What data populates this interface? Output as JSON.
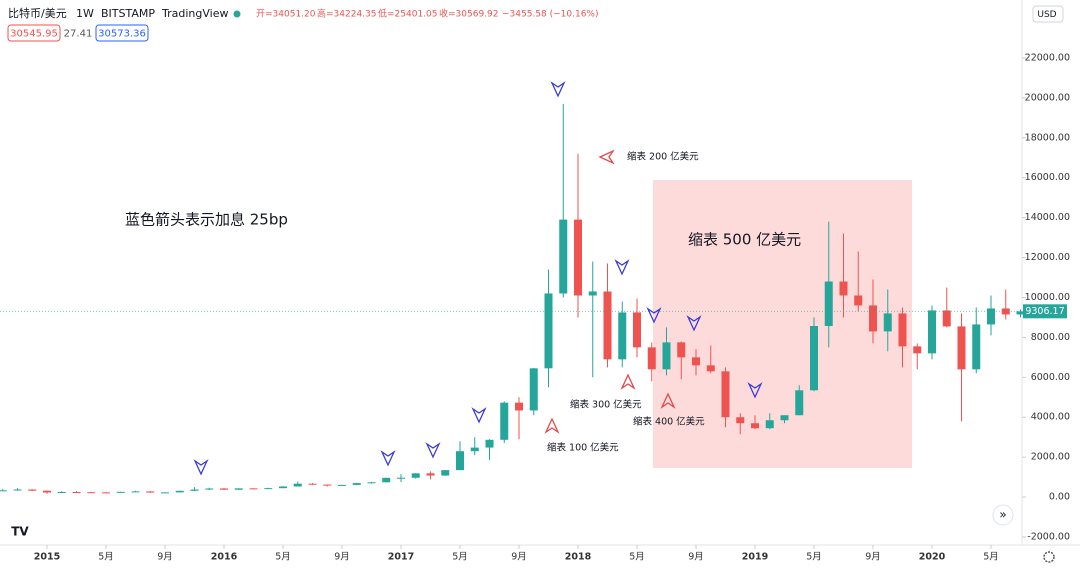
{
  "header": {
    "symbol": "比特币/美元",
    "interval": "1W",
    "exchange": "BITSTAMP",
    "source": "TradingView",
    "ohlc": [
      "开=34051.20",
      "高=34224.35",
      "低=25401.05",
      "收=30569.92"
    ],
    "change": "−3455.58 (−10.16%)",
    "bid": "30545.95",
    "spread": "27.41",
    "ask": "30573.36",
    "currency": "USD"
  },
  "chart_data": {
    "type": "candlestick",
    "annotations": [
      "蓝色箭头表示加息 25bp",
      "缩表 500 亿美元",
      "缩表 200 亿美元",
      "缩表 300 亿美元",
      "缩表 400 亿美元",
      "缩表 100 亿美元"
    ],
    "x": [
      "2014-10",
      "2014-11",
      "2014-12",
      "2015-01",
      "2015-02",
      "2015-03",
      "2015-04",
      "2015-05",
      "2015-06",
      "2015-07",
      "2015-08",
      "2015-09",
      "2015-10",
      "2015-11",
      "2015-12",
      "2016-01",
      "2016-02",
      "2016-03",
      "2016-04",
      "2016-05",
      "2016-06",
      "2016-07",
      "2016-08",
      "2016-09",
      "2016-10",
      "2016-11",
      "2016-12",
      "2017-01",
      "2017-02",
      "2017-03",
      "2017-04",
      "2017-05",
      "2017-06",
      "2017-07",
      "2017-08",
      "2017-09",
      "2017-10",
      "2017-11",
      "2017-12",
      "2018-01",
      "2018-02",
      "2018-03",
      "2018-04",
      "2018-05",
      "2018-06",
      "2018-07",
      "2018-08",
      "2018-09",
      "2018-10",
      "2018-11",
      "2018-12",
      "2019-01",
      "2019-02",
      "2019-03",
      "2019-04",
      "2019-05",
      "2019-06",
      "2019-07",
      "2019-08",
      "2019-09",
      "2019-10",
      "2019-11",
      "2019-12",
      "2020-01",
      "2020-02",
      "2020-03",
      "2020-04",
      "2020-05",
      "2020-06",
      "2020-07"
    ],
    "series": [
      {
        "name": "比特币/美元",
        "up_color": "#26a69a",
        "down_color": "#ef5350",
        "values": [
          [
            340,
            400,
            300,
            340
          ],
          [
            340,
            450,
            320,
            380
          ],
          [
            380,
            390,
            310,
            320
          ],
          [
            320,
            330,
            170,
            230
          ],
          [
            230,
            300,
            210,
            255
          ],
          [
            255,
            300,
            240,
            245
          ],
          [
            245,
            260,
            210,
            235
          ],
          [
            235,
            250,
            225,
            230
          ],
          [
            230,
            265,
            220,
            262
          ],
          [
            262,
            320,
            260,
            285
          ],
          [
            285,
            290,
            200,
            230
          ],
          [
            230,
            245,
            225,
            237
          ],
          [
            237,
            320,
            235,
            315
          ],
          [
            315,
            500,
            300,
            378
          ],
          [
            378,
            470,
            350,
            430
          ],
          [
            430,
            460,
            360,
            370
          ],
          [
            370,
            440,
            360,
            437
          ],
          [
            437,
            440,
            400,
            416
          ],
          [
            416,
            470,
            410,
            448
          ],
          [
            448,
            550,
            440,
            530
          ],
          [
            530,
            780,
            530,
            670
          ],
          [
            670,
            700,
            600,
            625
          ],
          [
            625,
            630,
            530,
            575
          ],
          [
            575,
            620,
            570,
            610
          ],
          [
            610,
            720,
            600,
            700
          ],
          [
            700,
            760,
            690,
            740
          ],
          [
            740,
            970,
            740,
            965
          ],
          [
            965,
            1150,
            750,
            970
          ],
          [
            970,
            1200,
            920,
            1190
          ],
          [
            1190,
            1290,
            890,
            1080
          ],
          [
            1080,
            1350,
            1060,
            1350
          ],
          [
            1350,
            2800,
            1350,
            2300
          ],
          [
            2300,
            3000,
            2100,
            2480
          ],
          [
            2480,
            2900,
            1850,
            2870
          ],
          [
            2870,
            4800,
            2700,
            4730
          ],
          [
            4730,
            5000,
            2900,
            4340
          ],
          [
            4340,
            6470,
            4100,
            6450
          ],
          [
            6450,
            11400,
            5500,
            10200
          ],
          [
            10200,
            19700,
            10000,
            13900
          ],
          [
            13900,
            17200,
            9000,
            10100
          ],
          [
            10100,
            11800,
            6000,
            10300
          ],
          [
            10300,
            11700,
            6500,
            6900
          ],
          [
            6900,
            9800,
            6500,
            9250
          ],
          [
            9250,
            9950,
            7000,
            7500
          ],
          [
            7500,
            7750,
            5800,
            6400
          ],
          [
            6400,
            8500,
            6100,
            7750
          ],
          [
            7750,
            7800,
            5900,
            7000
          ],
          [
            7000,
            7400,
            6100,
            6600
          ],
          [
            6600,
            7600,
            6200,
            6300
          ],
          [
            6300,
            6500,
            3500,
            4000
          ],
          [
            4000,
            4200,
            3150,
            3700
          ],
          [
            3700,
            4100,
            3400,
            3450
          ],
          [
            3450,
            4200,
            3400,
            3850
          ],
          [
            3850,
            4100,
            3700,
            4100
          ],
          [
            4100,
            5600,
            4100,
            5350
          ],
          [
            5350,
            9000,
            5300,
            8570
          ],
          [
            8570,
            13800,
            7500,
            10800
          ],
          [
            10800,
            13200,
            9000,
            10100
          ],
          [
            10100,
            12300,
            9300,
            9600
          ],
          [
            9600,
            10900,
            7700,
            8300
          ],
          [
            8300,
            10400,
            7300,
            9200
          ],
          [
            9200,
            9500,
            6500,
            7550
          ],
          [
            7550,
            7700,
            6400,
            7200
          ],
          [
            7200,
            9600,
            6900,
            9350
          ],
          [
            9350,
            10500,
            8500,
            8550
          ],
          [
            8550,
            9200,
            3800,
            6400
          ],
          [
            6400,
            9500,
            6200,
            8650
          ],
          [
            8650,
            10100,
            8100,
            9450
          ],
          [
            9450,
            10400,
            8900,
            9150
          ],
          [
            9150,
            9400,
            9000,
            9306
          ]
        ]
      }
    ],
    "last_price": 9306.17,
    "ylim": [
      -2400,
      24400
    ],
    "yticks": [
      {
        "value": -2000,
        "label": "-2000.00"
      },
      {
        "value": 0,
        "label": "0.00"
      },
      {
        "value": 2000,
        "label": "2000.00"
      },
      {
        "value": 4000,
        "label": "4000.00"
      },
      {
        "value": 6000,
        "label": "6000.00"
      },
      {
        "value": 8000,
        "label": "8000.00"
      },
      {
        "value": 10000,
        "label": "10000.00"
      },
      {
        "value": 12000,
        "label": "12000.00"
      },
      {
        "value": 14000,
        "label": "14000.00"
      },
      {
        "value": 16000,
        "label": "16000.00"
      },
      {
        "value": 18000,
        "label": "18000.00"
      },
      {
        "value": 20000,
        "label": "20000.00"
      },
      {
        "value": 22000,
        "label": "22000.00"
      }
    ],
    "xticks": [
      {
        "value": "2015-01",
        "label": "2015"
      },
      {
        "value": "2015-05",
        "label": "5月"
      },
      {
        "value": "2015-09",
        "label": "9月"
      },
      {
        "value": "2016-01",
        "label": "2016"
      },
      {
        "value": "2016-05",
        "label": "5月"
      },
      {
        "value": "2016-09",
        "label": "9月"
      },
      {
        "value": "2017-01",
        "label": "2017"
      },
      {
        "value": "2017-05",
        "label": "5月"
      },
      {
        "value": "2017-09",
        "label": "9月"
      },
      {
        "value": "2018-01",
        "label": "2018"
      },
      {
        "value": "2018-05",
        "label": "5月"
      },
      {
        "value": "2018-09",
        "label": "9月"
      },
      {
        "value": "2019-01",
        "label": "2019"
      },
      {
        "value": "2019-05",
        "label": "5月"
      },
      {
        "value": "2019-09",
        "label": "9月"
      },
      {
        "value": "2020-01",
        "label": "2020"
      },
      {
        "value": "2020-05",
        "label": "5月"
      }
    ]
  }
}
